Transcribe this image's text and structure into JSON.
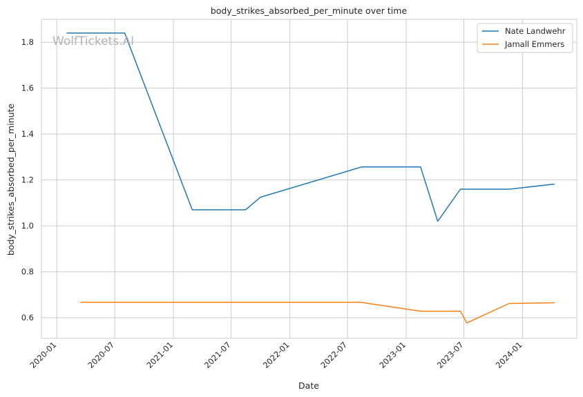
{
  "watermark": "WolfTickets.AI",
  "chart_data": {
    "type": "line",
    "title": "body_strikes_absorbed_per_minute over time",
    "xlabel": "Date",
    "ylabel": "body_strikes_absorbed_per_minute",
    "x_ticks": [
      "2020-01",
      "2020-07",
      "2021-01",
      "2021-07",
      "2022-01",
      "2022-07",
      "2023-01",
      "2023-07",
      "2024-01"
    ],
    "y_ticks": [
      "0.6",
      "0.8",
      "1.0",
      "1.2",
      "1.4",
      "1.6",
      "1.8"
    ],
    "xlim": [
      "2019-11-14",
      "2024-06-19"
    ],
    "ylim": [
      0.51,
      1.9
    ],
    "grid": true,
    "legend_position": "top-right",
    "series": [
      {
        "name": "Nate Landwehr",
        "color": "#1f77b4",
        "points": [
          {
            "x": "2020-02-01",
            "y": 1.84
          },
          {
            "x": "2020-08-01",
            "y": 1.84
          },
          {
            "x": "2021-03-01",
            "y": 1.07
          },
          {
            "x": "2021-08-15",
            "y": 1.07
          },
          {
            "x": "2021-10-01",
            "y": 1.125
          },
          {
            "x": "2022-08-15",
            "y": 1.257
          },
          {
            "x": "2023-02-15",
            "y": 1.257
          },
          {
            "x": "2023-04-10",
            "y": 1.02
          },
          {
            "x": "2023-06-20",
            "y": 1.16
          },
          {
            "x": "2023-11-20",
            "y": 1.16
          },
          {
            "x": "2024-04-10",
            "y": 1.182
          }
        ]
      },
      {
        "name": "Jamall Emmers",
        "color": "#ff7f0e",
        "points": [
          {
            "x": "2020-03-15",
            "y": 0.667
          },
          {
            "x": "2022-08-10",
            "y": 0.667
          },
          {
            "x": "2023-02-15",
            "y": 0.628
          },
          {
            "x": "2023-06-20",
            "y": 0.628
          },
          {
            "x": "2023-07-10",
            "y": 0.577
          },
          {
            "x": "2023-11-20",
            "y": 0.662
          },
          {
            "x": "2024-04-10",
            "y": 0.665
          }
        ]
      }
    ]
  }
}
